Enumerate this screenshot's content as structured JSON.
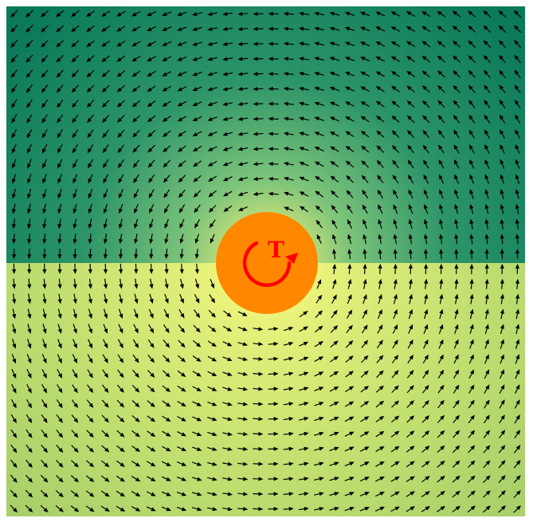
{
  "figure": {
    "colors": {
      "top_region_edge": "#0b7a5a",
      "top_region_center": "#e7f078",
      "bottom_region_edge": "#a9d06a",
      "bottom_region_center": "#ffff80",
      "arrow": "#000000",
      "particle": "#ff8800",
      "torque_symbol": "#ff0000"
    },
    "arrow_grid": {
      "columns": 34,
      "rows": 34
    },
    "particle": {
      "label": "T",
      "torque_icon": "counterclockwise-rotation-icon"
    }
  }
}
